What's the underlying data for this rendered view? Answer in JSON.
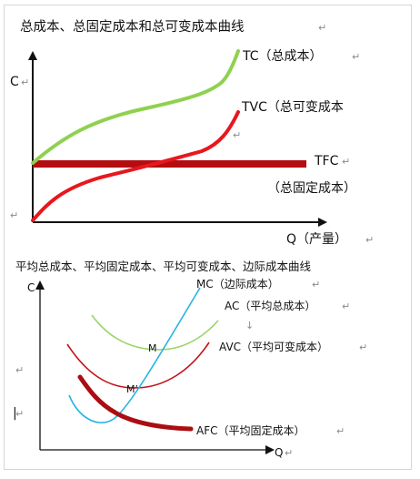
{
  "top_chart": {
    "title": "总成本、总固定成本和总可变成本曲线",
    "y_axis_label": "C",
    "x_axis_label": "Q（产量）",
    "curves": {
      "tc": {
        "label": "TC（总成本）",
        "color": "#8fd14f"
      },
      "tvc": {
        "label": "TVC（总可变成本",
        "color": "#e8171e"
      },
      "tfc": {
        "label_line1": "TFC",
        "label_line2": "（总固定成本）",
        "color": "#b30d12"
      }
    }
  },
  "bottom_chart": {
    "title": "平均总成本、平均固定成本、平均可变成本、边际成本曲线",
    "y_axis_label": "C",
    "x_axis_label": "Q",
    "points": {
      "m": "M",
      "m_prime": "M’"
    },
    "curves": {
      "mc": {
        "label": "MC（边际成本）",
        "color": "#25b3e2"
      },
      "ac": {
        "label": "AC（平均总成本）",
        "color": "#9bd468"
      },
      "avc": {
        "label": "AVC（平均可变成本）",
        "color": "#c2121a"
      },
      "afc": {
        "label": "AFC（平均固定成本）",
        "color": "#aa0d12"
      }
    }
  },
  "paragraph_mark": "↵",
  "arrow_mark": "↓",
  "cursor_mark": "|"
}
